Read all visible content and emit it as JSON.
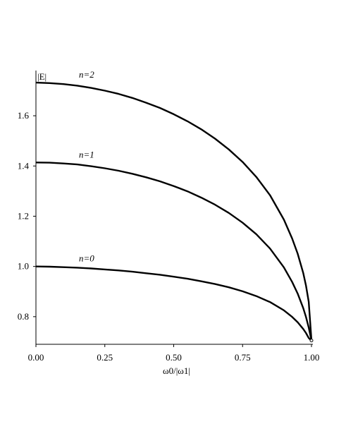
{
  "chart_data": {
    "type": "line",
    "xlabel": "ω0/|ω1|",
    "ylabel": "|E|",
    "xlim": [
      0,
      1
    ],
    "ylim": [
      0.69,
      1.78
    ],
    "x_ticks": [
      0,
      0.25,
      0.5,
      0.75,
      1.0
    ],
    "x_tick_labels": [
      "0.00",
      "0.25",
      "0.50",
      "0.75",
      "1.00"
    ],
    "y_ticks": [
      0.8,
      1.0,
      1.2,
      1.4,
      1.6
    ],
    "y_tick_labels": [
      "0.8",
      "1.0",
      "1.2",
      "1.4",
      "1.6"
    ],
    "grid": false,
    "legend": "none",
    "series": [
      {
        "name": "n=0",
        "x": [
          0,
          0.05,
          0.1,
          0.15,
          0.2,
          0.25,
          0.3,
          0.35,
          0.4,
          0.45,
          0.5,
          0.55,
          0.6,
          0.65,
          0.7,
          0.75,
          0.8,
          0.85,
          0.9,
          0.93,
          0.95,
          0.97,
          0.98,
          0.99,
          1.0
        ],
        "y": [
          1.0,
          0.999,
          0.997,
          0.995,
          0.992,
          0.988,
          0.984,
          0.979,
          0.973,
          0.967,
          0.959,
          0.951,
          0.941,
          0.93,
          0.917,
          0.901,
          0.882,
          0.858,
          0.825,
          0.799,
          0.778,
          0.751,
          0.735,
          0.715,
          0.705
        ]
      },
      {
        "name": "n=1",
        "x": [
          0,
          0.05,
          0.1,
          0.15,
          0.2,
          0.25,
          0.3,
          0.35,
          0.4,
          0.45,
          0.5,
          0.55,
          0.6,
          0.65,
          0.7,
          0.75,
          0.8,
          0.85,
          0.9,
          0.93,
          0.95,
          0.97,
          0.98,
          0.99,
          1.0
        ],
        "y": [
          1.414,
          1.413,
          1.41,
          1.406,
          1.399,
          1.391,
          1.381,
          1.369,
          1.355,
          1.339,
          1.32,
          1.299,
          1.274,
          1.246,
          1.213,
          1.174,
          1.128,
          1.071,
          0.996,
          0.938,
          0.892,
          0.834,
          0.799,
          0.757,
          0.705
        ]
      },
      {
        "name": "n=2",
        "x": [
          0,
          0.05,
          0.1,
          0.15,
          0.2,
          0.25,
          0.3,
          0.35,
          0.4,
          0.45,
          0.5,
          0.55,
          0.6,
          0.65,
          0.7,
          0.75,
          0.8,
          0.85,
          0.9,
          0.93,
          0.95,
          0.97,
          0.98,
          0.99,
          1.0
        ],
        "y": [
          1.732,
          1.73,
          1.726,
          1.72,
          1.711,
          1.7,
          1.687,
          1.671,
          1.652,
          1.631,
          1.606,
          1.578,
          1.546,
          1.509,
          1.466,
          1.416,
          1.356,
          1.283,
          1.186,
          1.111,
          1.051,
          0.974,
          0.924,
          0.859,
          0.705
        ]
      }
    ]
  }
}
